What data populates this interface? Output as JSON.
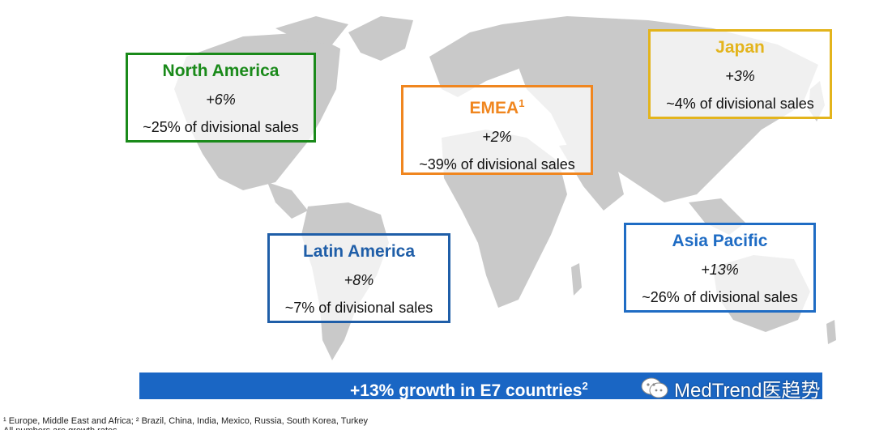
{
  "regions": {
    "north_america": {
      "title": "North America",
      "growth": "+6%",
      "share": "~25% of divisional sales",
      "color": "#1a8a1a"
    },
    "emea": {
      "title": "EMEA",
      "title_sup": "1",
      "growth": "+2%",
      "share": "~39% of divisional sales",
      "color": "#f0861f"
    },
    "japan": {
      "title": "Japan",
      "growth": "+3%",
      "share": "~4% of divisional sales",
      "color": "#e3b41c"
    },
    "latin_america": {
      "title": "Latin America",
      "growth": "+8%",
      "share": "~7% of divisional sales",
      "color": "#1f5ea8"
    },
    "asia_pacific": {
      "title": "Asia Pacific",
      "growth": "+13%",
      "share": "~26% of divisional sales",
      "color": "#1f6cc4"
    }
  },
  "banner": {
    "text": "+13% growth in E7 countries",
    "sup": "2",
    "color": "#1a66c4"
  },
  "watermark": {
    "text": "MedTrend医趋势",
    "icon": "wechat-icon"
  },
  "footnotes": {
    "line1": "¹ Europe, Middle East and Africa; ² Brazil, China, India, Mexico, Russia, South Korea, Turkey",
    "line2": "All numbers are growth rates"
  }
}
